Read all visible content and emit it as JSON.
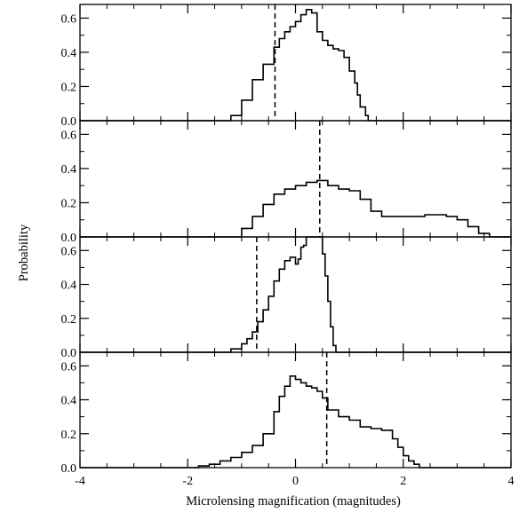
{
  "chart_data": [
    {
      "type": "step",
      "panel": 1,
      "xlim": [
        -4,
        4
      ],
      "ylim": [
        0,
        0.68
      ],
      "dashed_line_x": -0.38,
      "x": [
        -1.6,
        -1.2,
        -1.0,
        -0.8,
        -0.6,
        -0.4,
        -0.3,
        -0.2,
        -0.1,
        0.0,
        0.1,
        0.2,
        0.3,
        0.4,
        0.5,
        0.6,
        0.7,
        0.8,
        0.9,
        1.0,
        1.1,
        1.15,
        1.2,
        1.3,
        1.35
      ],
      "y": [
        0.0,
        0.03,
        0.12,
        0.24,
        0.33,
        0.43,
        0.48,
        0.52,
        0.55,
        0.58,
        0.62,
        0.65,
        0.63,
        0.52,
        0.47,
        0.44,
        0.42,
        0.41,
        0.37,
        0.29,
        0.22,
        0.15,
        0.08,
        0.03,
        0.0
      ]
    },
    {
      "type": "step",
      "panel": 2,
      "xlim": [
        -4,
        4
      ],
      "ylim": [
        0,
        0.68
      ],
      "dashed_line_x": 0.45,
      "x": [
        -1.2,
        -1.0,
        -0.8,
        -0.6,
        -0.4,
        -0.2,
        0.0,
        0.2,
        0.4,
        0.6,
        0.8,
        1.0,
        1.2,
        1.4,
        1.6,
        1.8,
        2.0,
        2.2,
        2.4,
        2.6,
        2.8,
        3.0,
        3.2,
        3.4,
        3.6
      ],
      "y": [
        0.0,
        0.05,
        0.12,
        0.19,
        0.25,
        0.28,
        0.3,
        0.32,
        0.33,
        0.3,
        0.28,
        0.27,
        0.22,
        0.15,
        0.12,
        0.12,
        0.12,
        0.12,
        0.13,
        0.13,
        0.12,
        0.1,
        0.06,
        0.02,
        0.0
      ]
    },
    {
      "type": "step",
      "panel": 3,
      "xlim": [
        -4,
        4
      ],
      "ylim": [
        0,
        0.68
      ],
      "dashed_line_x": -0.72,
      "x": [
        -1.4,
        -1.2,
        -1.0,
        -0.9,
        -0.8,
        -0.7,
        -0.6,
        -0.5,
        -0.4,
        -0.3,
        -0.2,
        -0.1,
        0.0,
        0.05,
        0.1,
        0.15,
        0.2,
        0.3,
        0.4,
        0.45,
        0.5,
        0.55,
        0.6,
        0.65,
        0.7,
        0.75
      ],
      "y": [
        0.0,
        0.02,
        0.05,
        0.08,
        0.12,
        0.18,
        0.25,
        0.33,
        0.42,
        0.49,
        0.54,
        0.56,
        0.52,
        0.55,
        0.62,
        0.63,
        0.68,
        0.68,
        0.68,
        0.68,
        0.58,
        0.45,
        0.3,
        0.15,
        0.04,
        0.0
      ]
    },
    {
      "type": "step",
      "panel": 4,
      "xlim": [
        -4,
        4
      ],
      "ylim": [
        0,
        0.68
      ],
      "dashed_line_x": 0.58,
      "x": [
        -2.0,
        -1.8,
        -1.6,
        -1.4,
        -1.2,
        -1.0,
        -0.8,
        -0.6,
        -0.4,
        -0.3,
        -0.2,
        -0.1,
        0.0,
        0.1,
        0.2,
        0.3,
        0.4,
        0.5,
        0.6,
        0.8,
        1.0,
        1.2,
        1.4,
        1.6,
        1.8,
        1.9,
        2.0,
        2.1,
        2.2,
        2.3
      ],
      "y": [
        0.0,
        0.01,
        0.02,
        0.04,
        0.06,
        0.09,
        0.13,
        0.2,
        0.33,
        0.42,
        0.48,
        0.54,
        0.52,
        0.5,
        0.48,
        0.47,
        0.45,
        0.41,
        0.34,
        0.3,
        0.28,
        0.24,
        0.23,
        0.22,
        0.17,
        0.12,
        0.07,
        0.04,
        0.02,
        0.0
      ]
    }
  ],
  "axes": {
    "xlabel": "Microlensing magnification (magnitudes)",
    "ylabel": "Probability",
    "x_ticks": [
      "-4",
      "-2",
      "0",
      "2",
      "4"
    ],
    "y_ticks": [
      "0.0",
      "0.2",
      "0.4",
      "0.6"
    ]
  },
  "colors": {
    "line": "#000000",
    "background": "#ffffff"
  }
}
